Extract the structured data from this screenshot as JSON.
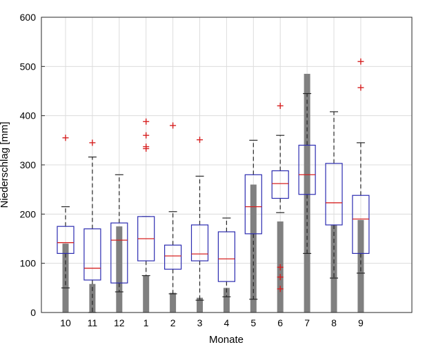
{
  "chart_data": {
    "type": "box",
    "xlabel": "Monate",
    "ylabel": "Niederschlag [mm]",
    "ylim": [
      0,
      600
    ],
    "yticks": [
      0,
      100,
      200,
      300,
      400,
      500,
      600
    ],
    "grid": true,
    "categories": [
      "10",
      "11",
      "12",
      "1",
      "2",
      "3",
      "4",
      "5",
      "6",
      "7",
      "8",
      "9"
    ],
    "bars": [
      140,
      58,
      175,
      75,
      40,
      30,
      50,
      260,
      185,
      485,
      178,
      188
    ],
    "boxes": [
      {
        "q1": 120,
        "median": 142,
        "q3": 175,
        "lower_whisker": 50,
        "upper_whisker": 215,
        "outliers": [
          355
        ]
      },
      {
        "q1": 66,
        "median": 90,
        "q3": 170,
        "lower_whisker": 0,
        "upper_whisker": 316,
        "outliers": [
          345
        ]
      },
      {
        "q1": 60,
        "median": 147,
        "q3": 182,
        "lower_whisker": 42,
        "upper_whisker": 280,
        "outliers": []
      },
      {
        "q1": 105,
        "median": 150,
        "q3": 195,
        "lower_whisker": 75,
        "upper_whisker": 195,
        "outliers": [
          388,
          360,
          337,
          333
        ]
      },
      {
        "q1": 88,
        "median": 115,
        "q3": 137,
        "lower_whisker": 38,
        "upper_whisker": 205,
        "outliers": [
          380
        ]
      },
      {
        "q1": 105,
        "median": 119,
        "q3": 178,
        "lower_whisker": 25,
        "upper_whisker": 277,
        "outliers": [
          351
        ]
      },
      {
        "q1": 63,
        "median": 109,
        "q3": 164,
        "lower_whisker": 32,
        "upper_whisker": 192,
        "outliers": []
      },
      {
        "q1": 160,
        "median": 215,
        "q3": 280,
        "lower_whisker": 27,
        "upper_whisker": 350,
        "outliers": []
      },
      {
        "q1": 232,
        "median": 262,
        "q3": 288,
        "lower_whisker": 203,
        "upper_whisker": 360,
        "outliers": [
          420,
          92,
          72,
          48
        ]
      },
      {
        "q1": 240,
        "median": 280,
        "q3": 340,
        "lower_whisker": 120,
        "upper_whisker": 445,
        "outliers": []
      },
      {
        "q1": 178,
        "median": 223,
        "q3": 303,
        "lower_whisker": 70,
        "upper_whisker": 408,
        "outliers": []
      },
      {
        "q1": 120,
        "median": 190,
        "q3": 238,
        "lower_whisker": 80,
        "upper_whisker": 345,
        "outliers": [
          510,
          457
        ]
      }
    ]
  }
}
